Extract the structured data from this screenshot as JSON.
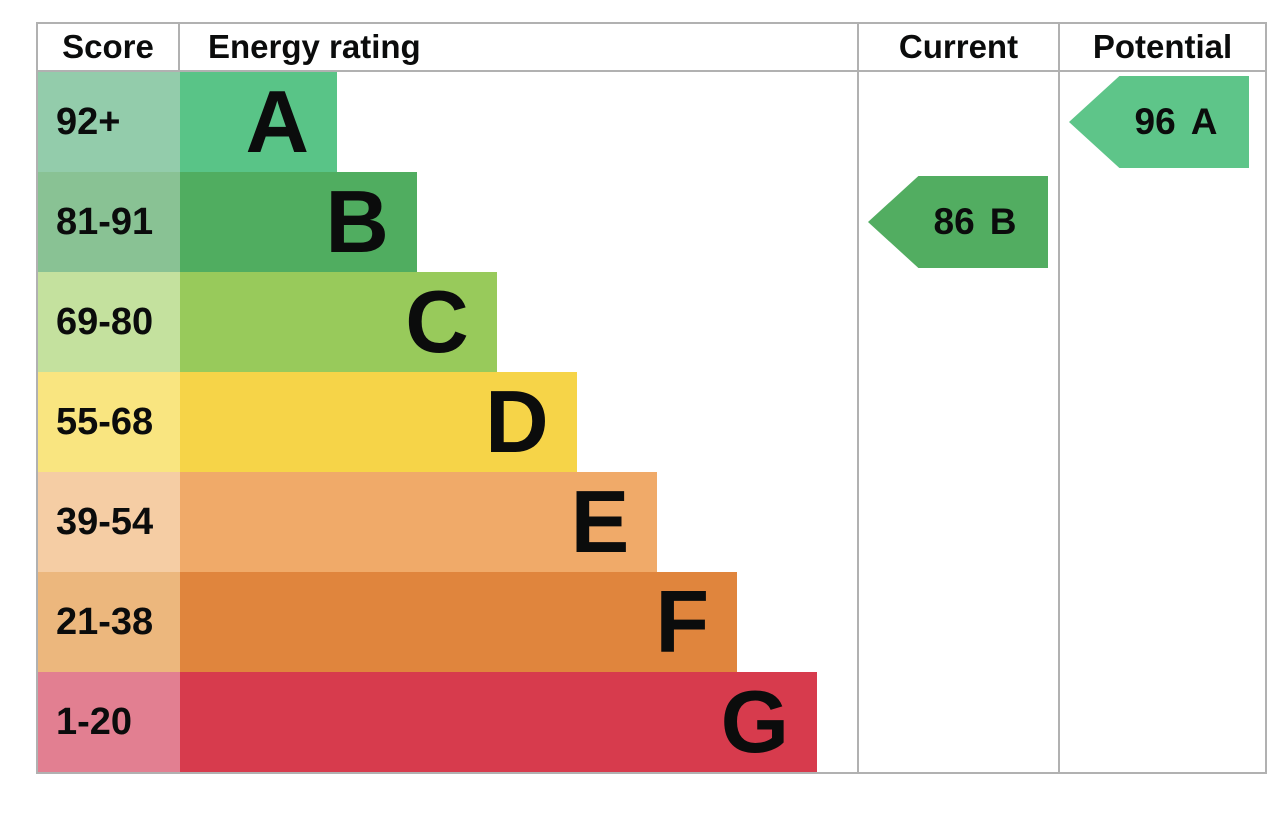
{
  "chart_data": {
    "type": "bar",
    "title": "Energy rating (EPC band chart)",
    "columns": [
      "Score",
      "Energy rating",
      "Current",
      "Potential"
    ],
    "legend_position": "none",
    "orientation": "horizontal",
    "bands": [
      {
        "score_range": "92+",
        "letter": "A",
        "color": "#59c487",
        "score_cell_color": "#93ccab",
        "bar_width": "23.2%"
      },
      {
        "score_range": "81-91",
        "letter": "B",
        "color": "#50ad60",
        "score_cell_color": "#89c294",
        "bar_width": "35.0%"
      },
      {
        "score_range": "69-80",
        "letter": "C",
        "color": "#98ca5b",
        "score_cell_color": "#c4e19e",
        "bar_width": "46.8%"
      },
      {
        "score_range": "55-68",
        "letter": "D",
        "color": "#f6d448",
        "score_cell_color": "#f9e580",
        "bar_width": "58.6%"
      },
      {
        "score_range": "39-54",
        "letter": "E",
        "color": "#f0aa69",
        "score_cell_color": "#f5cda4",
        "bar_width": "70.5%"
      },
      {
        "score_range": "21-38",
        "letter": "F",
        "color": "#e0853d",
        "score_cell_color": "#ecb77d",
        "bar_width": "82.3%"
      },
      {
        "score_range": "1-20",
        "letter": "G",
        "color": "#d73b4d",
        "score_cell_color": "#e27f91",
        "bar_width": "94.1%"
      }
    ],
    "current": {
      "score": "86",
      "band": "B",
      "arrow_color": "#52ad61",
      "row_band": "B"
    },
    "potential": {
      "score": "96",
      "band": "A",
      "arrow_color": "#5ec589",
      "row_band": "A"
    }
  }
}
